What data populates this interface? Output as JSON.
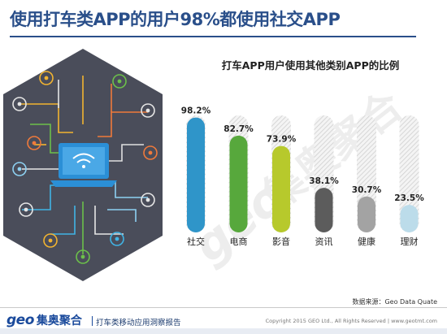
{
  "slide": {
    "title": "使用打车类APP的用户98%都使用社交APP",
    "source": "数据来源：Geo Data Quate"
  },
  "footer": {
    "logo_geo": "geo",
    "logo_cn": "集奥聚合",
    "report": "打车类移动应用洞察报告",
    "copyright": "Copyright 2015 GEO Ltd., All Rights Reserved  |  www.geotmt.com"
  },
  "colors": {
    "title": "#2a4f8a",
    "hexagon_bg": "#4a4d5a",
    "laptop": "#2b8fd6"
  },
  "icons": [
    "wifi-icon",
    "phone-icon",
    "laptop-icon",
    "chat-icon",
    "mail-icon",
    "gear-icon",
    "camera-icon",
    "music-icon",
    "person-icon",
    "cloud-icon",
    "globe-icon",
    "tablet-icon",
    "lock-icon"
  ],
  "chart_data": {
    "type": "bar",
    "title": "打车APP用户使用其他类别APP的比例",
    "categories": [
      "社交",
      "电商",
      "影音",
      "资讯",
      "健康",
      "理财"
    ],
    "values": [
      98.2,
      82.7,
      73.9,
      38.1,
      30.7,
      23.5
    ],
    "labels": [
      "98.2%",
      "82.7%",
      "73.9%",
      "38.1%",
      "30.7%",
      "23.5%"
    ],
    "colors": [
      "#2f95c9",
      "#57a83c",
      "#b7c92c",
      "#5c5c5c",
      "#a3a3a3",
      "#bcdcea"
    ],
    "ylim": [
      0,
      100
    ],
    "background_bars": true,
    "grid": false
  }
}
